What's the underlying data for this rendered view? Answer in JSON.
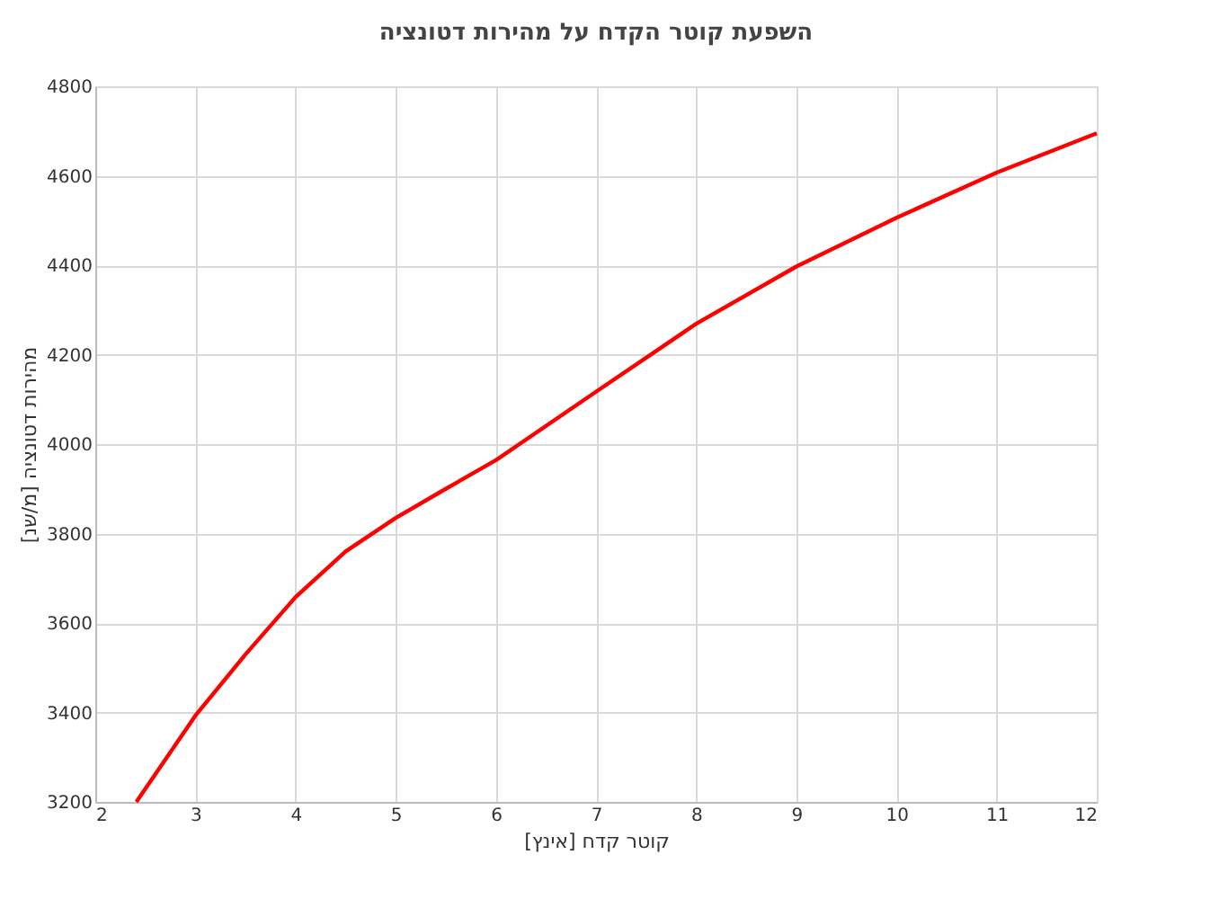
{
  "chart_data": {
    "type": "line",
    "title": "השפעת קוטר הקדח על מהירות דטונציה",
    "xlabel": "קוטר קדח [אינץ]",
    "ylabel": "מהירות דטונציה [מ/שנ]",
    "x": [
      2.41,
      3,
      3.5,
      4,
      4.5,
      5,
      5.5,
      6,
      7,
      8,
      9,
      10,
      11,
      12
    ],
    "series": [
      {
        "color": "#ff0000",
        "values": [
          3200,
          3393,
          3530,
          3658,
          3760,
          3835,
          3900,
          3964,
          4117,
          4269,
          4397,
          4506,
          4607,
          4695
        ]
      }
    ],
    "xlim": [
      2,
      12
    ],
    "xticks": [
      2,
      3,
      4,
      5,
      6,
      7,
      8,
      9,
      10,
      11,
      12
    ],
    "ylim": [
      3200,
      4800
    ],
    "yticks": [
      3200,
      3400,
      3600,
      3800,
      4000,
      4200,
      4400,
      4600,
      4800
    ],
    "grid": true,
    "marker": "none",
    "line_style": "solid"
  }
}
